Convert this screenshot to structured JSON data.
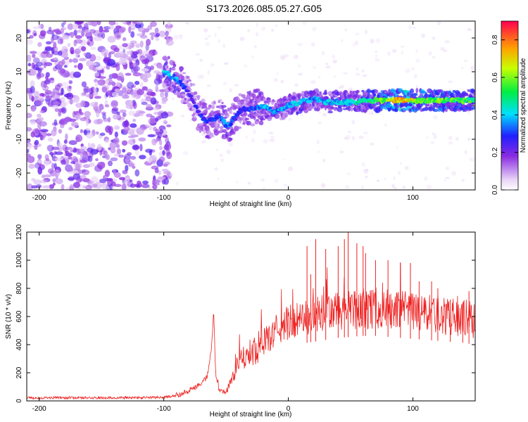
{
  "title": "S173.2026.085.05.27.G05",
  "colors": {
    "signal": "#ee2222",
    "dots": "#8a2be2",
    "axis": "#000000"
  },
  "chart_data": [
    {
      "type": "heatmap",
      "title": "S173.2026.085.05.27.G05",
      "xlabel": "Height of straight line (km)",
      "ylabel": "Frequency (Hz)",
      "xlim": [
        -210,
        150
      ],
      "ylim": [
        -25,
        25
      ],
      "xticks": [
        -200,
        -100,
        0,
        100
      ],
      "yticks": [
        -20,
        -10,
        0,
        10,
        20
      ],
      "colorbar": {
        "label": "Normalized spectral amplitude",
        "range": [
          0,
          0.9
        ],
        "ticks": [
          0.0,
          0.2,
          0.4,
          0.6,
          0.8
        ],
        "tick_labels": [
          "0.0",
          "0.2",
          "0.4",
          "0.6",
          "0.8"
        ]
      },
      "ridge": {
        "height_km": [
          -100,
          -90,
          -80,
          -75,
          -70,
          -65,
          -60,
          -55,
          -50,
          -45,
          -40,
          -35,
          -30,
          -20,
          -10,
          0,
          10,
          20,
          30,
          50,
          70,
          90,
          110,
          130,
          150
        ],
        "frequency_hz": [
          10,
          8,
          4,
          0,
          -3,
          -5,
          -4,
          -3,
          -6,
          -5,
          -2,
          -1,
          -1,
          0,
          -2,
          0,
          1,
          2,
          1,
          1,
          1.5,
          1.5,
          1.5,
          1.5,
          1.5
        ],
        "amplitude": [
          0.45,
          0.4,
          0.3,
          0.28,
          0.3,
          0.35,
          0.32,
          0.3,
          0.4,
          0.35,
          0.3,
          0.32,
          0.35,
          0.4,
          0.38,
          0.4,
          0.45,
          0.4,
          0.42,
          0.45,
          0.55,
          0.8,
          0.65,
          0.6,
          0.55
        ]
      },
      "background_noise": {
        "height_km_range": [
          -210,
          -95
        ],
        "frequency_hz_range": [
          -25,
          25
        ]
      }
    },
    {
      "type": "line",
      "series_name": "SNR",
      "xlabel": "Height of straight line (km)",
      "ylabel": "SNR (10 * v/v)",
      "xlim": [
        -210,
        150
      ],
      "ylim": [
        0,
        1200
      ],
      "xticks": [
        -200,
        -100,
        0,
        100
      ],
      "yticks": [
        0,
        200,
        400,
        600,
        800,
        1000,
        1200
      ],
      "x": [
        -210,
        -180,
        -150,
        -120,
        -100,
        -90,
        -80,
        -70,
        -65,
        -62,
        -60,
        -58,
        -55,
        -50,
        -45,
        -40,
        -35,
        -30,
        -25,
        -20,
        -15,
        -10,
        -5,
        0,
        10,
        20,
        30,
        40,
        50,
        60,
        70,
        80,
        90,
        100,
        110,
        120,
        130,
        140,
        150
      ],
      "values": [
        20,
        22,
        20,
        22,
        25,
        35,
        70,
        120,
        170,
        350,
        620,
        200,
        70,
        60,
        160,
        260,
        300,
        340,
        360,
        420,
        450,
        500,
        520,
        560,
        580,
        600,
        620,
        640,
        650,
        660,
        660,
        650,
        640,
        630,
        620,
        610,
        600,
        590,
        570
      ],
      "peaks": [
        {
          "x": 15,
          "y": 1100
        },
        {
          "x": 18,
          "y": 900
        },
        {
          "x": 22,
          "y": 1150
        },
        {
          "x": 30,
          "y": 1080
        },
        {
          "x": 40,
          "y": 1100
        },
        {
          "x": 45,
          "y": 1150
        },
        {
          "x": 48,
          "y": 1200
        },
        {
          "x": 55,
          "y": 1120
        },
        {
          "x": 60,
          "y": 1100
        },
        {
          "x": 62,
          "y": 1050
        },
        {
          "x": 70,
          "y": 1000
        },
        {
          "x": 80,
          "y": 1000
        },
        {
          "x": 90,
          "y": 980
        },
        {
          "x": 98,
          "y": 980
        },
        {
          "x": 105,
          "y": 850
        },
        {
          "x": 115,
          "y": 850
        },
        {
          "x": 120,
          "y": 800
        },
        {
          "x": 130,
          "y": 720
        },
        {
          "x": 140,
          "y": 700
        },
        {
          "x": 145,
          "y": 780
        }
      ]
    }
  ]
}
